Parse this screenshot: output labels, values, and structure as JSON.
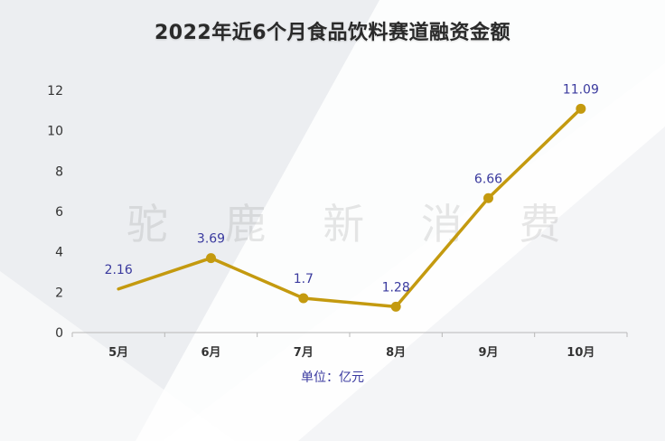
{
  "title": "2022年近6个月食品饮料赛道融资金额",
  "watermark": "驼 鹿 新 消 费",
  "unit_label": "单位：亿元",
  "colors": {
    "line": "#c49a0f",
    "data_label": "#3a3a9e",
    "axis_text": "#333333",
    "axis_line": "#b8b8b8"
  },
  "chart_data": {
    "type": "line",
    "title": "2022年近6个月食品饮料赛道融资金额",
    "categories": [
      "5月",
      "6月",
      "7月",
      "8月",
      "9月",
      "10月"
    ],
    "values": [
      2.16,
      3.69,
      1.7,
      1.28,
      6.66,
      11.09
    ],
    "data_labels": [
      "2.16",
      "3.69",
      "1.7",
      "1.28",
      "6.66",
      "11.09"
    ],
    "y_ticks": [
      0,
      2,
      4,
      6,
      8,
      10,
      12
    ],
    "ylim": [
      0,
      12
    ],
    "xlabel": "单位：亿元",
    "ylabel": "",
    "grid": false,
    "markers_on_points": [
      false,
      true,
      true,
      true,
      true,
      true
    ]
  }
}
